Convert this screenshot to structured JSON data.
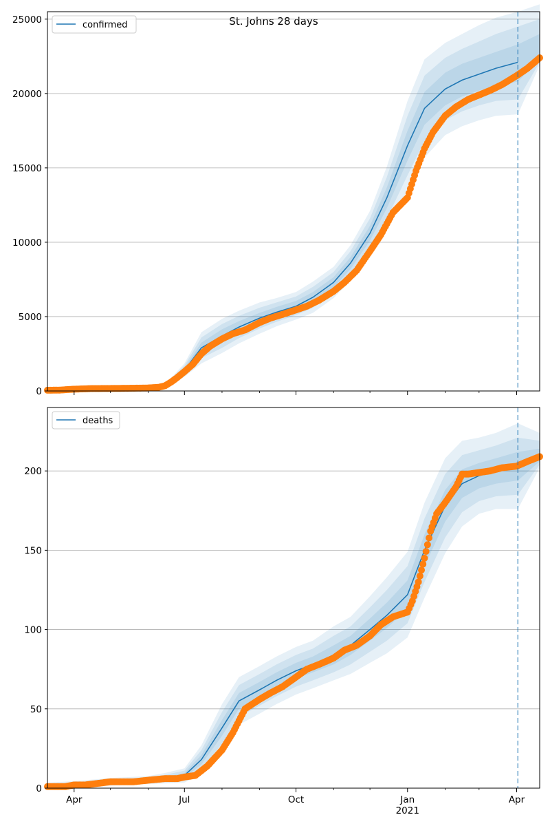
{
  "suptitle": "St. Johns 28 days",
  "x_axis": {
    "start": "2020-03-10",
    "end": "2021-04-20",
    "ticks": [
      {
        "date": "2020-04-01",
        "label": "Apr",
        "sublabel": ""
      },
      {
        "date": "2020-07-01",
        "label": "Jul",
        "sublabel": ""
      },
      {
        "date": "2020-10-01",
        "label": "Oct",
        "sublabel": ""
      },
      {
        "date": "2021-01-01",
        "label": "Jan",
        "sublabel": "2021"
      },
      {
        "date": "2021-04-01",
        "label": "Apr",
        "sublabel": ""
      }
    ],
    "minor_ticks": [
      "2020-05-01",
      "2020-06-01",
      "2020-08-01",
      "2020-09-01",
      "2020-11-01",
      "2020-12-01",
      "2021-02-01",
      "2021-03-01",
      "2021-05-01"
    ]
  },
  "forecast_start": "2021-04-02",
  "colors": {
    "model_line": "#1f77b4",
    "observed": "#ff7f0e",
    "band": "#1f77b4",
    "vline": "#1f77b4",
    "grid": "#b0b0b0"
  },
  "chart_data": [
    {
      "type": "line",
      "title": "St. Johns 28 days",
      "legend": "confirmed",
      "legend_loc": "top-left",
      "grid": "horizontal",
      "ylim": [
        0,
        25500
      ],
      "yticks": [
        0,
        5000,
        10000,
        15000,
        20000,
        25000
      ],
      "model": {
        "name": "confirmed",
        "x": [
          "2020-03-10",
          "2020-04-01",
          "2020-05-01",
          "2020-06-01",
          "2020-06-15",
          "2020-07-01",
          "2020-07-15",
          "2020-08-01",
          "2020-08-15",
          "2020-09-01",
          "2020-09-15",
          "2020-10-01",
          "2020-10-15",
          "2020-11-01",
          "2020-11-15",
          "2020-12-01",
          "2020-12-15",
          "2021-01-01",
          "2021-01-15",
          "2021-02-01",
          "2021-02-15",
          "2021-03-01",
          "2021-03-15",
          "2021-04-02"
        ],
        "y": [
          50,
          80,
          150,
          200,
          350,
          1400,
          2900,
          3700,
          4300,
          4900,
          5300,
          5700,
          6300,
          7300,
          8600,
          10600,
          13000,
          16500,
          19000,
          20300,
          20900,
          21300,
          21700,
          22100
        ],
        "bands": [
          {
            "lower": [
              30,
              60,
              130,
              180,
              320,
              1250,
              2550,
              3250,
              3900,
              4550,
              4950,
              5400,
              5950,
              6950,
              8200,
              10100,
              12300,
              15500,
              17900,
              19200,
              19800,
              20200,
              20500,
              20800
            ],
            "upper": [
              70,
              100,
              170,
              220,
              380,
              1550,
              3250,
              4150,
              4700,
              5250,
              5650,
              6050,
              6650,
              7650,
              9000,
              11100,
              13700,
              17500,
              20100,
              21400,
              22000,
              22400,
              22800,
              23300
            ]
          },
          {
            "lower": [
              20,
              40,
              110,
              160,
              290,
              1100,
              2200,
              2900,
              3550,
              4200,
              4650,
              5100,
              5600,
              6600,
              7800,
              9600,
              11600,
              14500,
              16800,
              18200,
              18800,
              19200,
              19500,
              19600
            ],
            "upper": [
              80,
              120,
              190,
              240,
              410,
              1700,
              3600,
              4500,
              5050,
              5600,
              5950,
              6350,
              7000,
              8000,
              9400,
              11600,
              14400,
              18500,
              21200,
              22400,
              23000,
              23500,
              24000,
              24500
            ]
          },
          {
            "lower": [
              10,
              20,
              90,
              140,
              260,
              950,
              1850,
              2550,
              3200,
              3850,
              4350,
              4800,
              5250,
              6250,
              7400,
              9100,
              10900,
              13500,
              15700,
              17200,
              17800,
              18200,
              18500,
              18600
            ],
            "upper": [
              90,
              140,
              210,
              260,
              440,
              1850,
              3950,
              4850,
              5400,
              5950,
              6250,
              6650,
              7350,
              8350,
              9800,
              12100,
              15100,
              19500,
              22300,
              23400,
              24000,
              24600,
              25100,
              25500
            ]
          }
        ],
        "extension": {
          "x": [
            "2021-04-02",
            "2021-04-20"
          ],
          "y": [
            22100,
            22500
          ],
          "bands": [
            {
              "lower": [
                21900,
                22300
              ],
              "upper": [
                22300,
                24000
              ]
            },
            {
              "lower": [
                21800,
                22100
              ],
              "upper": [
                22400,
                25000
              ]
            },
            {
              "lower": [
                21700,
                21900
              ],
              "upper": [
                22500,
                26000
              ]
            }
          ]
        }
      },
      "observed": {
        "x": [
          "2020-03-10",
          "2020-03-20",
          "2020-04-01",
          "2020-04-15",
          "2020-05-01",
          "2020-05-15",
          "2020-06-01",
          "2020-06-10",
          "2020-06-15",
          "2020-06-20",
          "2020-06-25",
          "2020-07-01",
          "2020-07-08",
          "2020-07-15",
          "2020-07-22",
          "2020-08-01",
          "2020-08-10",
          "2020-08-20",
          "2020-09-01",
          "2020-09-10",
          "2020-09-20",
          "2020-10-01",
          "2020-10-10",
          "2020-10-20",
          "2020-11-01",
          "2020-11-10",
          "2020-11-20",
          "2020-12-01",
          "2020-12-10",
          "2020-12-20",
          "2021-01-01",
          "2021-01-08",
          "2021-01-15",
          "2021-01-22",
          "2021-02-01",
          "2021-02-10",
          "2021-02-20",
          "2021-03-01",
          "2021-03-10",
          "2021-03-20",
          "2021-04-01",
          "2021-04-10",
          "2021-04-20"
        ],
        "y": [
          50,
          60,
          120,
          160,
          170,
          180,
          200,
          250,
          350,
          600,
          900,
          1300,
          1800,
          2500,
          3000,
          3500,
          3850,
          4100,
          4600,
          4900,
          5150,
          5450,
          5700,
          6100,
          6700,
          7300,
          8100,
          9400,
          10500,
          12000,
          13000,
          14800,
          16300,
          17400,
          18500,
          19100,
          19600,
          19900,
          20200,
          20600,
          21200,
          21700,
          22400
        ]
      }
    },
    {
      "type": "line",
      "title": "",
      "legend": "deaths",
      "legend_loc": "top-left",
      "grid": "horizontal",
      "ylim": [
        0,
        240
      ],
      "yticks": [
        0,
        50,
        100,
        150,
        200
      ],
      "model": {
        "name": "deaths",
        "x": [
          "2020-03-10",
          "2020-04-01",
          "2020-05-01",
          "2020-06-01",
          "2020-06-15",
          "2020-07-01",
          "2020-07-15",
          "2020-08-01",
          "2020-08-15",
          "2020-09-01",
          "2020-09-15",
          "2020-10-01",
          "2020-10-15",
          "2020-11-01",
          "2020-11-15",
          "2020-12-01",
          "2020-12-15",
          "2021-01-01",
          "2021-01-15",
          "2021-02-01",
          "2021-02-15",
          "2021-03-01",
          "2021-03-15",
          "2021-04-02"
        ],
        "y": [
          1,
          2,
          4,
          5,
          6,
          8,
          18,
          38,
          55,
          62,
          68,
          74,
          78,
          84,
          90,
          100,
          109,
          122,
          150,
          178,
          192,
          197,
          200,
          203
        ],
        "bands": [
          {
            "lower": [
              0.5,
              1.5,
              3.2,
              4.2,
              5,
              6.5,
              15,
              33,
              50,
              57,
              63,
              69,
              73,
              78,
              84,
              93,
              101,
              113,
              140,
              168,
              183,
              189,
              192,
              194
            ],
            "upper": [
              1.5,
              2.8,
              4.8,
              6,
              7.2,
              9.5,
              21,
              43,
              60,
              67,
              73,
              79,
              83,
              90,
              96,
              107,
              117,
              131,
              160,
              188,
              201,
              205,
              208,
              212
            ]
          },
          {
            "lower": [
              0,
              1,
              2.4,
              3.4,
              4,
              5,
              12,
              28,
              45,
              52,
              58,
              64,
              68,
              73,
              78,
              86,
              93,
              104,
              130,
              158,
              174,
              181,
              184,
              185
            ],
            "upper": [
              2.5,
              3.6,
              5.6,
              6.8,
              8.4,
              11,
              24,
              48,
              65,
              72,
              78,
              84,
              88,
              96,
              102,
              114,
              125,
              140,
              170,
              198,
              210,
              213,
              216,
              221
            ]
          },
          {
            "lower": [
              0,
              0.5,
              1.6,
              2.6,
              3,
              3.5,
              9,
              23,
              40,
              47,
              53,
              59,
              63,
              68,
              72,
              79,
              85,
              95,
              120,
              148,
              165,
              173,
              176,
              176
            ],
            "upper": [
              3.5,
              4.4,
              6.4,
              7.6,
              9.6,
              12.5,
              27,
              53,
              70,
              77,
              83,
              89,
              93,
              102,
              108,
              121,
              133,
              149,
              180,
              208,
              219,
              221,
              224,
              230
            ]
          }
        ],
        "extension": {
          "x": [
            "2021-04-02",
            "2021-04-20"
          ],
          "y": [
            203,
            210
          ],
          "bands": [
            {
              "lower": [
                202,
                206
              ],
              "upper": [
                204,
                214
              ]
            },
            {
              "lower": [
                201,
                204
              ],
              "upper": [
                205,
                219
              ]
            },
            {
              "lower": [
                200,
                202
              ],
              "upper": [
                206,
                224
              ]
            }
          ]
        }
      },
      "observed": {
        "x": [
          "2020-03-10",
          "2020-03-25",
          "2020-04-01",
          "2020-04-10",
          "2020-05-01",
          "2020-05-20",
          "2020-06-01",
          "2020-06-15",
          "2020-06-25",
          "2020-07-01",
          "2020-07-10",
          "2020-07-20",
          "2020-08-01",
          "2020-08-10",
          "2020-08-20",
          "2020-09-01",
          "2020-09-10",
          "2020-09-20",
          "2020-10-01",
          "2020-10-10",
          "2020-10-20",
          "2020-11-01",
          "2020-11-10",
          "2020-11-20",
          "2020-12-01",
          "2020-12-10",
          "2020-12-20",
          "2021-01-01",
          "2021-01-05",
          "2021-01-10",
          "2021-01-15",
          "2021-01-20",
          "2021-01-25",
          "2021-02-01",
          "2021-02-10",
          "2021-02-15",
          "2021-02-20",
          "2021-03-01",
          "2021-03-10",
          "2021-03-20",
          "2021-04-01",
          "2021-04-10",
          "2021-04-20"
        ],
        "y": [
          1,
          1,
          2,
          2,
          4,
          4,
          5,
          6,
          6,
          7,
          8,
          14,
          24,
          35,
          50,
          56,
          60,
          64,
          70,
          75,
          78,
          82,
          87,
          90,
          96,
          103,
          108,
          111,
          118,
          130,
          145,
          162,
          173,
          180,
          190,
          198,
          198,
          199,
          200,
          202,
          203,
          206,
          209
        ]
      }
    }
  ]
}
